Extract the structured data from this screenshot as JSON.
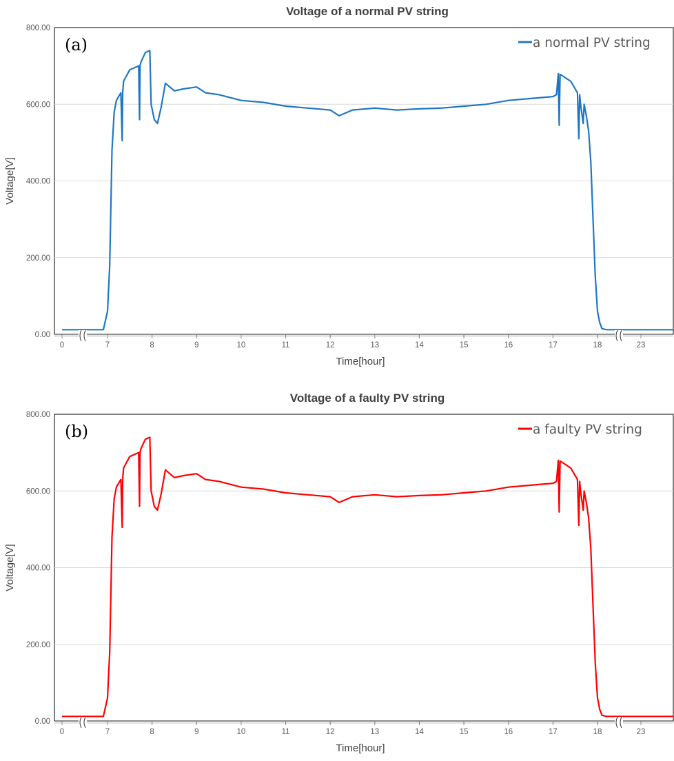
{
  "chart_data": [
    {
      "type": "line",
      "title": "Voltage of a normal PV string",
      "panel_label": "(a)",
      "xlabel": "Time[hour]",
      "ylabel": "Voltage[V]",
      "ylim": [
        0,
        800
      ],
      "yticks": [
        "0.00",
        "200.00",
        "400.00",
        "600.00",
        "800.00"
      ],
      "xticks": [
        "0",
        "7",
        "8",
        "9",
        "10",
        "11",
        "12",
        "13",
        "14",
        "15",
        "16",
        "17",
        "18",
        "23"
      ],
      "axis_break_marks": true,
      "grid": "horizontal",
      "legend_position": "top-right",
      "line_color": "#1F77C4",
      "series": [
        {
          "name": "a normal PV string",
          "x": [
            0,
            0.5,
            6.9,
            7.0,
            7.05,
            7.1,
            7.15,
            7.2,
            7.3,
            7.33,
            7.34,
            7.36,
            7.5,
            7.7,
            7.72,
            7.73,
            7.75,
            7.85,
            7.95,
            7.98,
            8.05,
            8.12,
            8.2,
            8.3,
            8.5,
            8.7,
            9.0,
            9.2,
            9.5,
            10.0,
            10.5,
            11.0,
            11.5,
            12.0,
            12.2,
            12.5,
            13.0,
            13.5,
            14.0,
            14.5,
            15.0,
            15.5,
            16.0,
            16.5,
            17.0,
            17.08,
            17.12,
            17.14,
            17.16,
            17.2,
            17.4,
            17.55,
            17.58,
            17.6,
            17.62,
            17.68,
            17.7,
            17.75,
            17.8,
            17.85,
            17.9,
            17.95,
            18.0,
            18.05,
            18.1,
            18.2,
            18.3,
            18.6,
            18.8,
            24.0
          ],
          "y": [
            12,
            12,
            12,
            60,
            180,
            480,
            580,
            610,
            630,
            505,
            630,
            660,
            690,
            700,
            560,
            700,
            710,
            735,
            740,
            600,
            560,
            550,
            590,
            655,
            635,
            640,
            645,
            630,
            625,
            610,
            605,
            595,
            590,
            585,
            570,
            585,
            590,
            585,
            588,
            590,
            595,
            600,
            610,
            615,
            620,
            625,
            680,
            545,
            678,
            675,
            660,
            630,
            510,
            625,
            600,
            550,
            600,
            570,
            530,
            450,
            300,
            150,
            60,
            30,
            15,
            12,
            12,
            12,
            12,
            12
          ]
        }
      ]
    },
    {
      "type": "line",
      "title": "Voltage of a faulty PV string",
      "panel_label": "(b)",
      "xlabel": "Time[hour]",
      "ylabel": "Voltage[V]",
      "ylim": [
        0,
        800
      ],
      "yticks": [
        "0.00",
        "200.00",
        "400.00",
        "600.00",
        "800.00"
      ],
      "xticks": [
        "0",
        "7",
        "8",
        "9",
        "10",
        "11",
        "12",
        "13",
        "14",
        "15",
        "16",
        "17",
        "18",
        "23"
      ],
      "axis_break_marks": true,
      "grid": "horizontal",
      "legend_position": "top-right",
      "line_color": "#FF0000",
      "series": [
        {
          "name": "a faulty PV string",
          "x": [
            0,
            0.5,
            6.9,
            7.0,
            7.05,
            7.1,
            7.15,
            7.2,
            7.3,
            7.33,
            7.34,
            7.36,
            7.5,
            7.7,
            7.72,
            7.73,
            7.75,
            7.85,
            7.95,
            7.98,
            8.05,
            8.12,
            8.2,
            8.3,
            8.5,
            8.7,
            9.0,
            9.2,
            9.5,
            10.0,
            10.5,
            11.0,
            11.5,
            12.0,
            12.2,
            12.5,
            13.0,
            13.5,
            14.0,
            14.5,
            15.0,
            15.5,
            16.0,
            16.5,
            17.0,
            17.08,
            17.12,
            17.14,
            17.16,
            17.2,
            17.4,
            17.55,
            17.58,
            17.6,
            17.62,
            17.68,
            17.7,
            17.75,
            17.8,
            17.85,
            17.9,
            17.95,
            18.0,
            18.05,
            18.1,
            18.2,
            18.3,
            18.6,
            18.8,
            24.0
          ],
          "y": [
            12,
            12,
            12,
            60,
            180,
            480,
            580,
            610,
            630,
            505,
            630,
            660,
            690,
            700,
            560,
            700,
            710,
            735,
            740,
            600,
            560,
            550,
            590,
            655,
            635,
            640,
            645,
            630,
            625,
            610,
            605,
            595,
            590,
            585,
            570,
            585,
            590,
            585,
            588,
            590,
            595,
            600,
            610,
            615,
            620,
            625,
            680,
            545,
            678,
            675,
            660,
            630,
            510,
            625,
            600,
            550,
            600,
            570,
            530,
            450,
            300,
            150,
            60,
            30,
            15,
            12,
            12,
            12,
            12,
            12
          ]
        }
      ]
    }
  ]
}
